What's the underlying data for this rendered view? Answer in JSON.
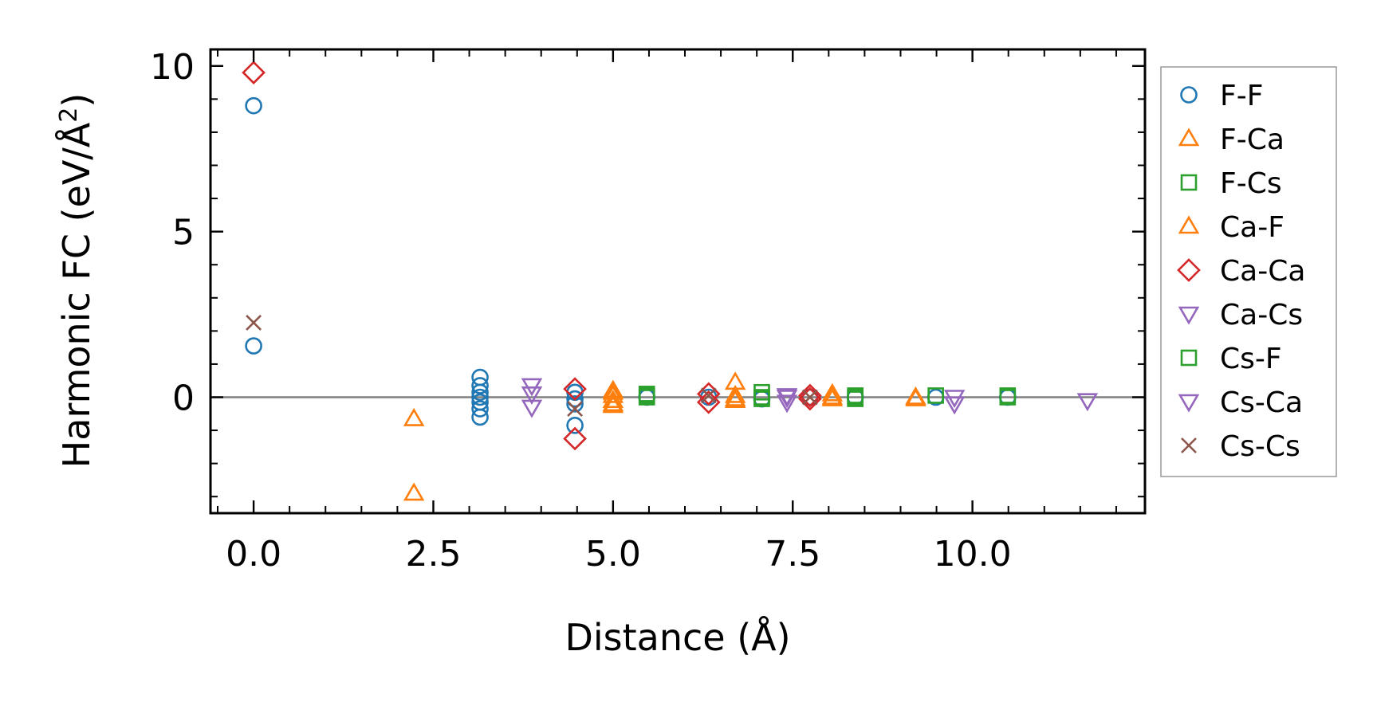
{
  "chart_data": {
    "type": "scatter",
    "xlabel": "Distance (Å)",
    "ylabel_prefix": "Harmonic FC (eV/Å",
    "ylabel_sup": "2",
    "ylabel_suffix": ")",
    "xlim": [
      -0.6,
      12.4
    ],
    "ylim": [
      -3.5,
      10.5
    ],
    "xticks": [
      0.0,
      2.5,
      5.0,
      7.5,
      10.0
    ],
    "xtick_labels": [
      "0.0",
      "2.5",
      "5.0",
      "7.5",
      "10.0"
    ],
    "yticks": [
      0,
      5,
      10
    ],
    "ytick_labels": [
      "0",
      "5",
      "10"
    ],
    "zero_line": true,
    "grid": false,
    "legend_position": "outside-right",
    "series": [
      {
        "name": "F-F",
        "marker": "circle",
        "color": "#1f77b4",
        "points": [
          [
            0,
            8.8
          ],
          [
            0,
            1.55
          ],
          [
            3.15,
            0.6
          ],
          [
            3.15,
            0.35
          ],
          [
            3.15,
            0.15
          ],
          [
            3.15,
            0.0
          ],
          [
            3.15,
            -0.15
          ],
          [
            3.15,
            -0.35
          ],
          [
            3.15,
            -0.6
          ],
          [
            4.47,
            0.15
          ],
          [
            4.47,
            -0.05
          ],
          [
            4.47,
            -0.2
          ],
          [
            4.47,
            -0.85
          ],
          [
            5.47,
            0.0
          ],
          [
            6.33,
            0.0
          ],
          [
            7.07,
            -0.05
          ],
          [
            7.74,
            0.0
          ],
          [
            8.37,
            0.0
          ],
          [
            9.49,
            0.0
          ],
          [
            10.49,
            0.0
          ]
        ]
      },
      {
        "name": "F-Ca",
        "marker": "triangle-up",
        "color": "#ff7f0e",
        "points": [
          [
            2.23,
            -0.65
          ],
          [
            2.23,
            -2.9
          ],
          [
            5.0,
            0.2
          ],
          [
            5.0,
            0.05
          ],
          [
            5.0,
            -0.1
          ],
          [
            5.0,
            -0.25
          ],
          [
            6.7,
            0.05
          ],
          [
            6.7,
            -0.05
          ],
          [
            8.05,
            0.1
          ],
          [
            8.05,
            -0.05
          ],
          [
            9.21,
            0.0
          ]
        ]
      },
      {
        "name": "F-Cs",
        "marker": "square",
        "color": "#2ca02c",
        "points": [
          [
            5.47,
            0.1
          ],
          [
            5.47,
            0.0
          ],
          [
            7.07,
            0.15
          ],
          [
            7.07,
            0.0
          ],
          [
            8.37,
            0.05
          ],
          [
            8.37,
            -0.05
          ],
          [
            9.49,
            0.05
          ],
          [
            10.49,
            0.0
          ]
        ]
      },
      {
        "name": "Ca-F",
        "marker": "triangle-up",
        "color": "#ff7f0e",
        "points": [
          [
            5.0,
            0.15
          ],
          [
            5.0,
            -0.2
          ],
          [
            6.7,
            0.45
          ],
          [
            6.7,
            -0.1
          ],
          [
            8.05,
            0.0
          ],
          [
            9.21,
            -0.05
          ]
        ]
      },
      {
        "name": "Ca-Ca",
        "marker": "diamond",
        "color": "#d62728",
        "points": [
          [
            0,
            9.8
          ],
          [
            4.47,
            0.25
          ],
          [
            4.47,
            -1.25
          ],
          [
            6.33,
            0.1
          ],
          [
            6.33,
            -0.15
          ],
          [
            7.74,
            0.05
          ],
          [
            7.74,
            -0.05
          ]
        ]
      },
      {
        "name": "Ca-Cs",
        "marker": "triangle-down",
        "color": "#9467bd",
        "points": [
          [
            3.87,
            0.35
          ],
          [
            3.87,
            -0.3
          ],
          [
            7.42,
            0.05
          ],
          [
            7.42,
            -0.15
          ],
          [
            9.75,
            0.0
          ],
          [
            11.6,
            -0.1
          ]
        ]
      },
      {
        "name": "Cs-F",
        "marker": "square",
        "color": "#2ca02c",
        "points": [
          [
            5.47,
            0.05
          ],
          [
            7.07,
            -0.05
          ],
          [
            8.37,
            0.0
          ],
          [
            10.49,
            0.05
          ]
        ]
      },
      {
        "name": "Cs-Ca",
        "marker": "triangle-down",
        "color": "#9467bd",
        "points": [
          [
            3.87,
            0.1
          ],
          [
            7.42,
            0.0
          ],
          [
            9.75,
            -0.2
          ]
        ]
      },
      {
        "name": "Cs-Cs",
        "marker": "x",
        "color": "#8c564b",
        "points": [
          [
            0,
            2.25
          ],
          [
            4.47,
            -0.35
          ],
          [
            6.33,
            0.05
          ],
          [
            7.74,
            0.0
          ]
        ]
      }
    ]
  }
}
